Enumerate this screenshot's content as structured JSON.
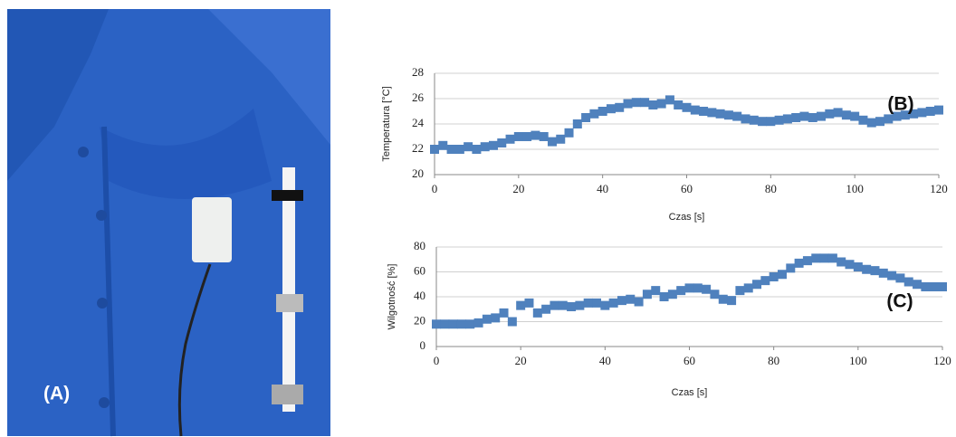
{
  "photo": {
    "label": "(A)"
  },
  "chart_data": [
    {
      "type": "scatter",
      "y_label": "Temperatura [°C]",
      "x_label": "Czas [s]",
      "annotation": "(B)",
      "color": "#4f81bd",
      "grid": true,
      "xlim": [
        0,
        120
      ],
      "xticks": [
        0,
        20,
        40,
        60,
        80,
        100,
        120
      ],
      "ylim": [
        20,
        28
      ],
      "yticks": [
        20,
        22,
        24,
        26,
        28
      ],
      "x": [
        0,
        2,
        4,
        6,
        8,
        10,
        12,
        14,
        16,
        18,
        20,
        22,
        24,
        26,
        28,
        30,
        32,
        34,
        36,
        38,
        40,
        42,
        44,
        46,
        48,
        50,
        52,
        54,
        56,
        58,
        60,
        62,
        64,
        66,
        68,
        70,
        72,
        74,
        76,
        78,
        80,
        82,
        84,
        86,
        88,
        90,
        92,
        94,
        96,
        98,
        100,
        102,
        104,
        106,
        108,
        110,
        112,
        114,
        116,
        118,
        120
      ],
      "values": [
        22,
        22.3,
        22,
        22,
        22.2,
        22,
        22.2,
        22.3,
        22.5,
        22.8,
        23,
        23,
        23.1,
        23,
        22.6,
        22.8,
        23.3,
        24,
        24.5,
        24.8,
        25,
        25.2,
        25.3,
        25.6,
        25.7,
        25.7,
        25.5,
        25.6,
        25.9,
        25.5,
        25.3,
        25.1,
        25,
        24.9,
        24.8,
        24.7,
        24.6,
        24.4,
        24.3,
        24.2,
        24.2,
        24.3,
        24.4,
        24.5,
        24.6,
        24.5,
        24.6,
        24.8,
        24.9,
        24.7,
        24.6,
        24.3,
        24.1,
        24.2,
        24.4,
        24.6,
        24.7,
        24.8,
        24.9,
        25,
        25.1
      ]
    },
    {
      "type": "scatter",
      "y_label": "Wilgotność [%]",
      "x_label": "Czas [s]",
      "annotation": "(C)",
      "color": "#4f81bd",
      "grid": true,
      "xlim": [
        0,
        120
      ],
      "xticks": [
        0,
        20,
        40,
        60,
        80,
        100,
        120
      ],
      "ylim": [
        0,
        80
      ],
      "yticks": [
        0,
        20,
        40,
        60,
        80
      ],
      "x": [
        0,
        2,
        4,
        6,
        8,
        10,
        12,
        14,
        16,
        18,
        20,
        22,
        24,
        26,
        28,
        30,
        32,
        34,
        36,
        38,
        40,
        42,
        44,
        46,
        48,
        50,
        52,
        54,
        56,
        58,
        60,
        62,
        64,
        66,
        68,
        70,
        72,
        74,
        76,
        78,
        80,
        82,
        84,
        86,
        88,
        90,
        92,
        94,
        96,
        98,
        100,
        102,
        104,
        106,
        108,
        110,
        112,
        114,
        116,
        118,
        120
      ],
      "values": [
        18,
        18,
        18,
        18,
        18,
        19,
        22,
        23,
        27,
        20,
        33,
        35,
        27,
        30,
        33,
        33,
        32,
        33,
        35,
        35,
        33,
        35,
        37,
        38,
        36,
        42,
        45,
        40,
        42,
        45,
        47,
        47,
        46,
        42,
        38,
        37,
        45,
        47,
        50,
        53,
        56,
        58,
        63,
        67,
        69,
        71,
        71,
        71,
        68,
        66,
        64,
        62,
        61,
        59,
        57,
        55,
        52,
        50,
        48,
        48,
        48
      ]
    }
  ]
}
